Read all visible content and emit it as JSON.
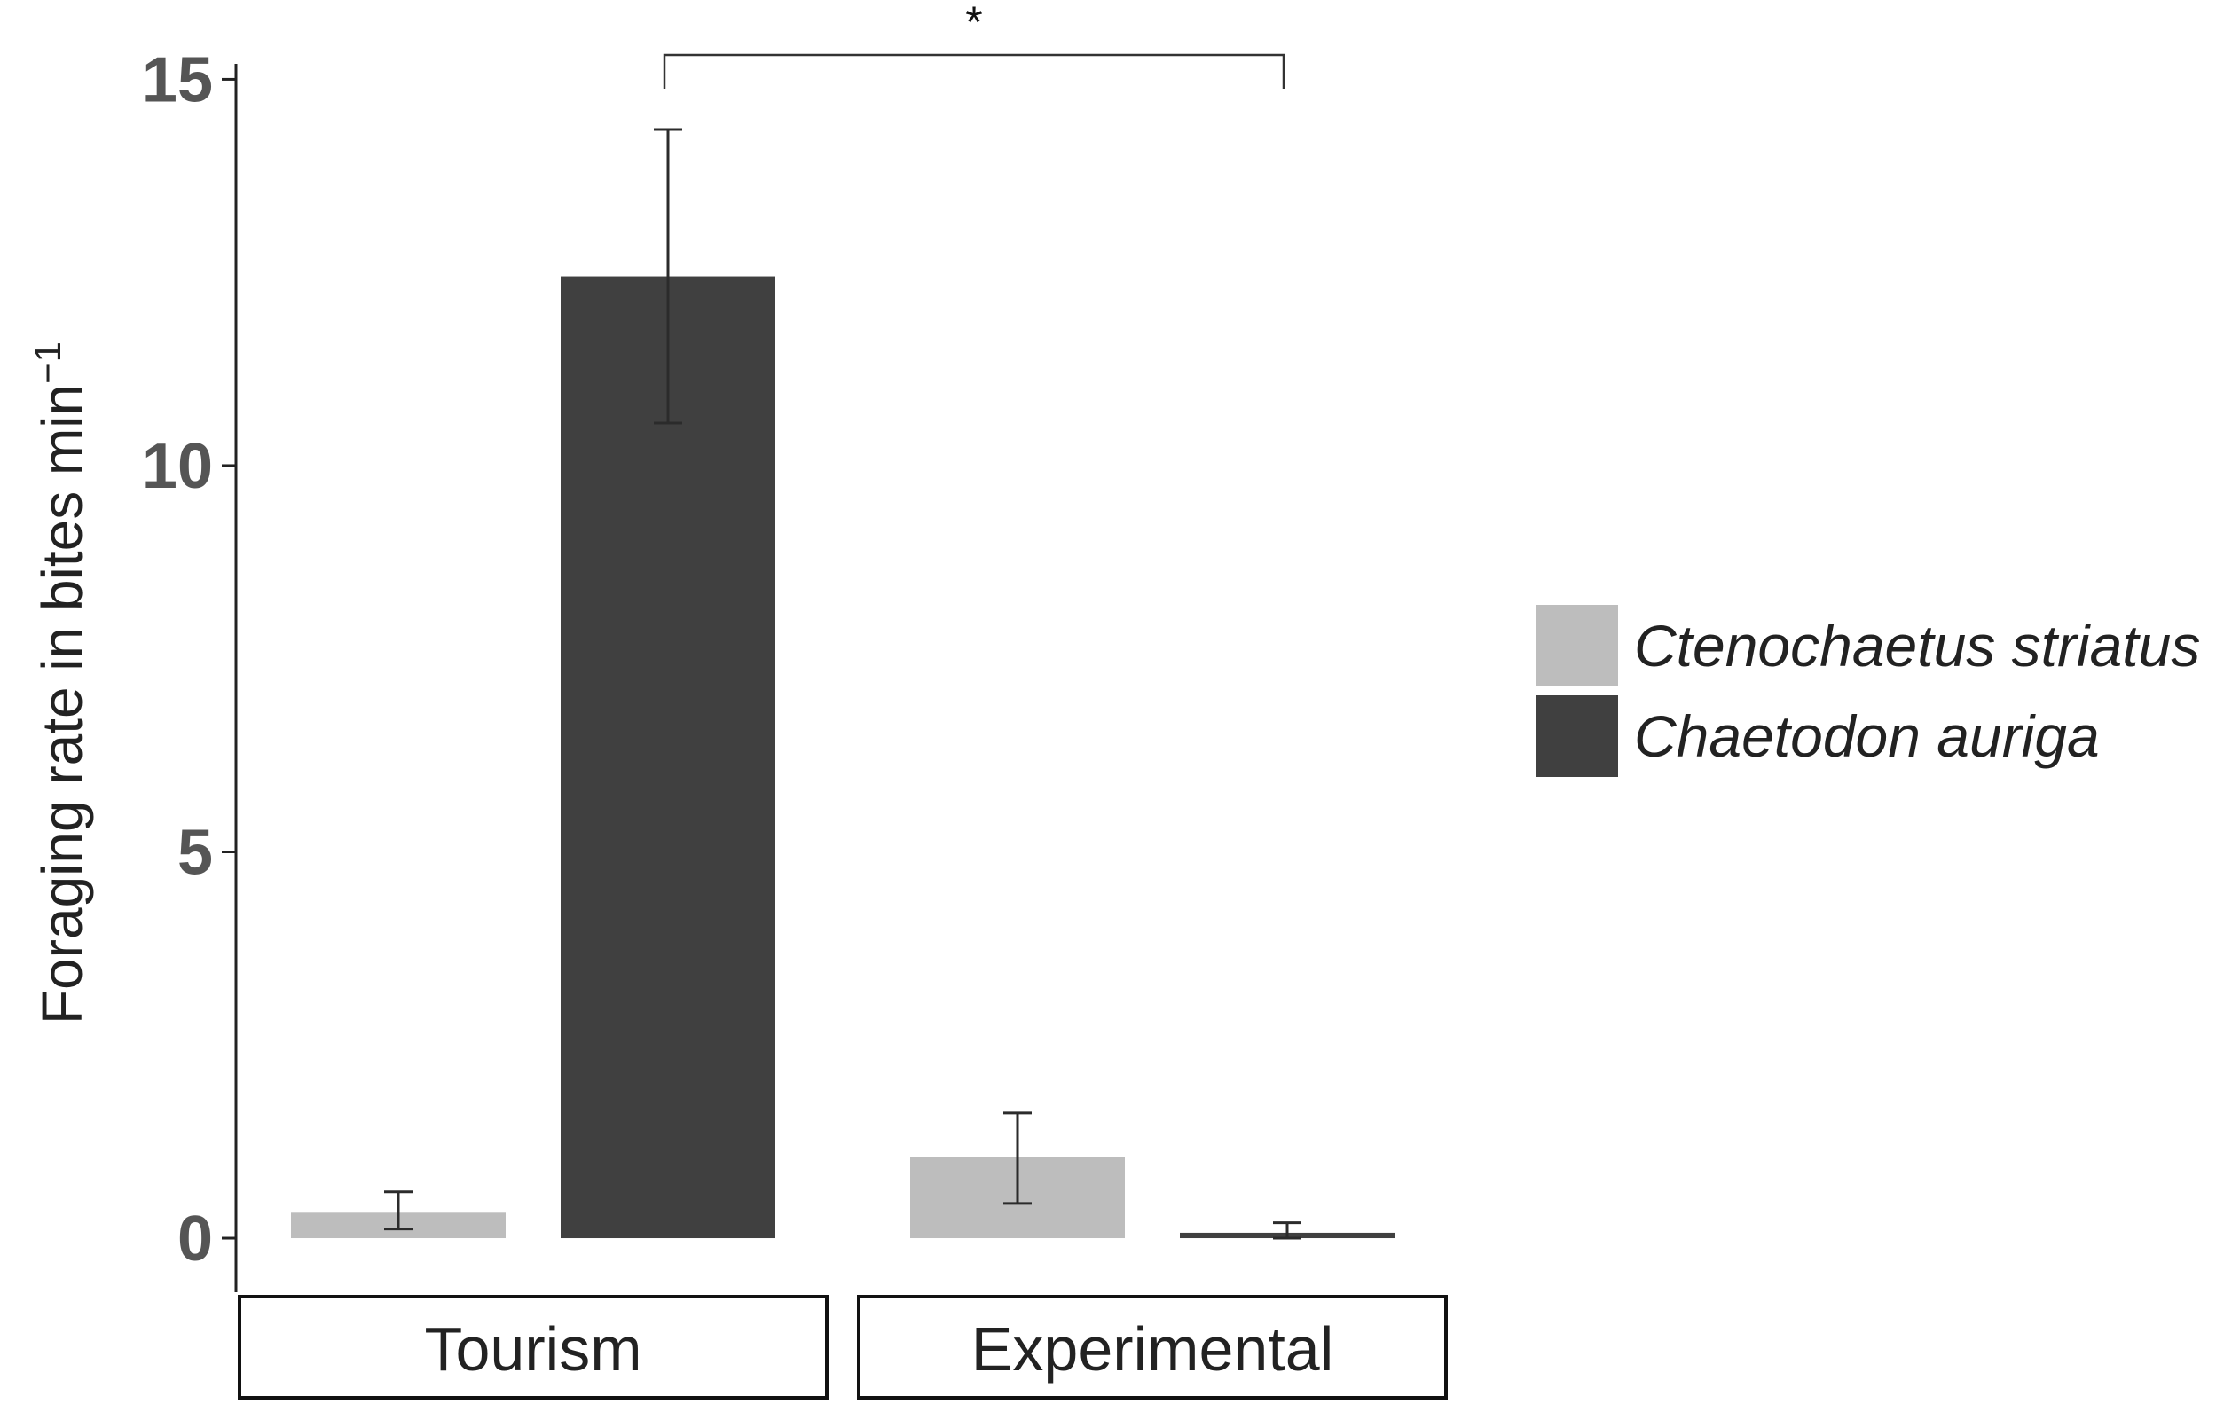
{
  "chart_data": {
    "type": "bar",
    "title": "",
    "xlabel": "",
    "ylabel": "Foraging rate in bites min",
    "ylabel_superscript": "−1",
    "ylim": [
      -0.7,
      15.2
    ],
    "yticks": [
      0,
      5,
      10,
      15
    ],
    "grid": false,
    "legend_position": "right",
    "facets": [
      "Tourism",
      "Experimental"
    ],
    "series": [
      {
        "name": "Ctenochaetus striatus",
        "color": "#bdbdbd",
        "values": [
          0.33,
          1.05
        ],
        "error_low": [
          0.12,
          0.45
        ],
        "error_high": [
          0.6,
          1.62
        ]
      },
      {
        "name": "Chaetodon auriga",
        "color": "#404040",
        "values": [
          12.45,
          0.07
        ],
        "error_low": [
          10.55,
          0.0
        ],
        "error_high": [
          14.35,
          0.2
        ]
      }
    ],
    "annotations": [
      {
        "text": "*",
        "type": "significance-bracket",
        "from": "Tourism / Chaetodon auriga",
        "to": "Experimental / Chaetodon auriga"
      }
    ]
  }
}
